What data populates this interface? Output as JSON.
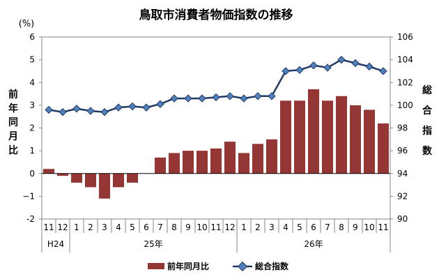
{
  "chart_data": {
    "type": "bar+line",
    "title": "鳥取市消費者物価指数の推移",
    "left_unit": "(%)",
    "left_label": "前年同月比",
    "right_label": "総合指数",
    "categories": [
      "11",
      "12",
      "1",
      "2",
      "3",
      "4",
      "5",
      "6",
      "7",
      "8",
      "9",
      "10",
      "11",
      "12",
      "1",
      "2",
      "3",
      "4",
      "5",
      "6",
      "7",
      "8",
      "9",
      "10",
      "11"
    ],
    "year_groups": [
      {
        "label": "H24",
        "start": 0,
        "end": 2
      },
      {
        "label": "25年",
        "start": 2,
        "end": 14
      },
      {
        "label": "26年",
        "start": 14,
        "end": 25
      }
    ],
    "series": [
      {
        "name": "前年同月比",
        "kind": "bar",
        "axis": "left",
        "color": "#943634",
        "values": [
          0.2,
          -0.1,
          -0.4,
          -0.6,
          -1.1,
          -0.6,
          -0.4,
          0.0,
          0.7,
          0.9,
          1.0,
          1.0,
          1.1,
          1.4,
          0.9,
          1.3,
          1.5,
          3.2,
          3.2,
          3.7,
          3.2,
          3.4,
          3.0,
          2.8,
          2.2
        ]
      },
      {
        "name": "総合指数",
        "kind": "line",
        "axis": "right",
        "color": "#1F3864",
        "values": [
          99.6,
          99.4,
          99.7,
          99.5,
          99.4,
          99.8,
          99.9,
          99.8,
          100.1,
          100.6,
          100.6,
          100.6,
          100.7,
          100.8,
          100.6,
          100.8,
          100.8,
          103.0,
          103.1,
          103.5,
          103.3,
          104.0,
          103.7,
          103.4,
          103.0
        ]
      }
    ],
    "ylim_left": [
      -2,
      6
    ],
    "yticks_left": [
      "-2",
      "−1",
      "0",
      "1",
      "2",
      "3",
      "4",
      "5",
      "6"
    ],
    "ylim_right": [
      90,
      106
    ],
    "yticks_right": [
      "90",
      "92",
      "94",
      "96",
      "98",
      "100",
      "102",
      "104",
      "106"
    ],
    "grid": false,
    "legend_position": "bottom"
  }
}
